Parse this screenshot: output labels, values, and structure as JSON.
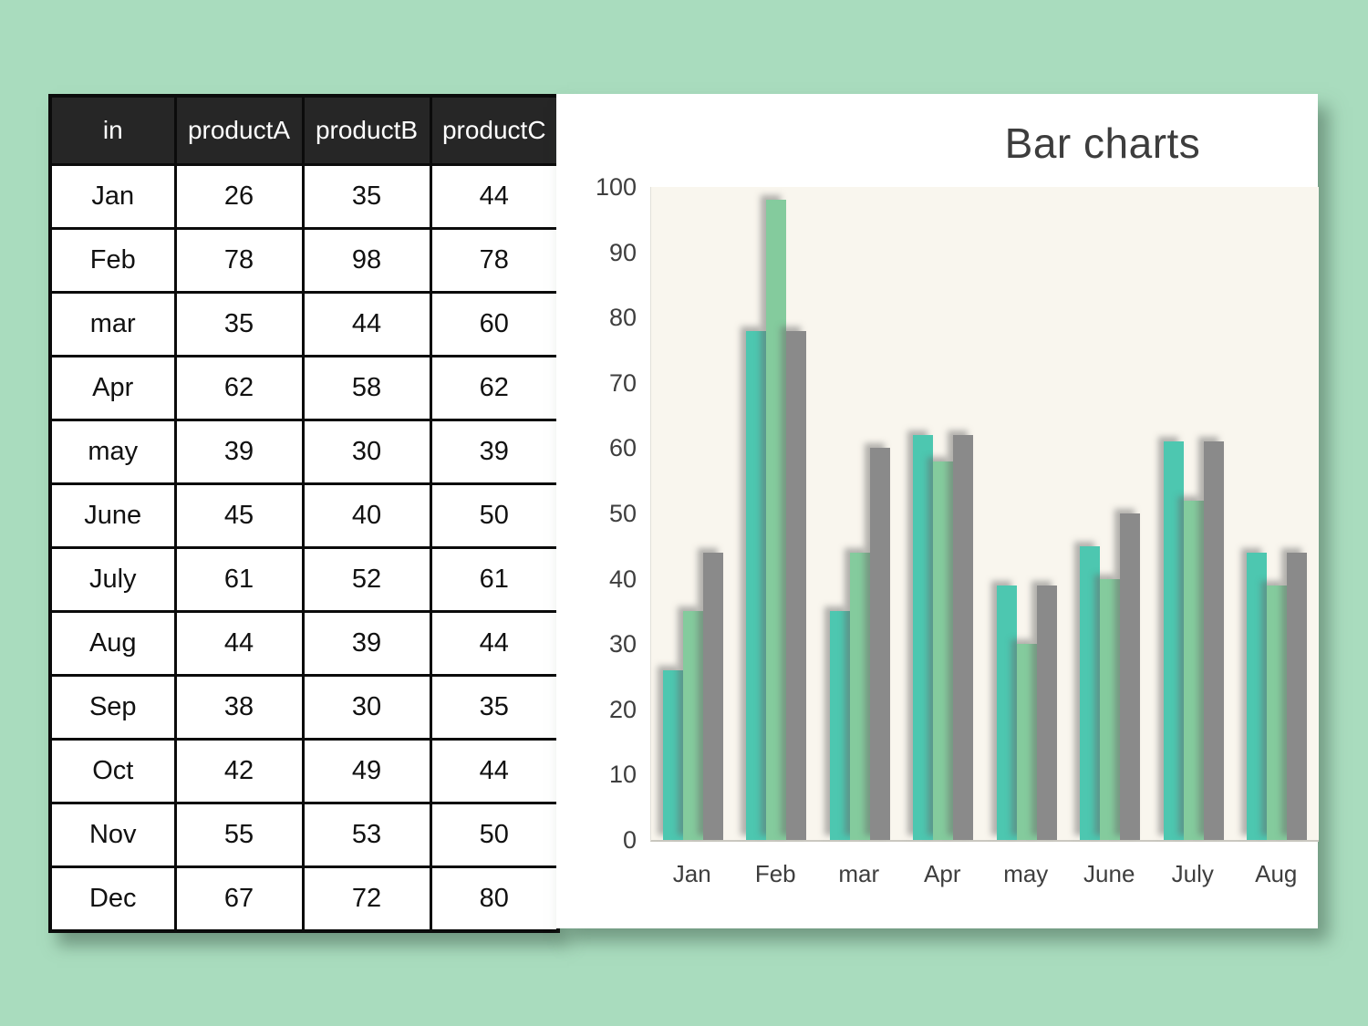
{
  "page": {
    "bg_color": "#a9dcbe"
  },
  "table": {
    "header_bg": "#262626",
    "header_text_color": "#ffffff",
    "headers": [
      "in",
      "productA",
      "productB",
      "productC"
    ],
    "rows": [
      {
        "month": "Jan",
        "productA": 26,
        "productB": 35,
        "productC": 44
      },
      {
        "month": "Feb",
        "productA": 78,
        "productB": 98,
        "productC": 78
      },
      {
        "month": "mar",
        "productA": 35,
        "productB": 44,
        "productC": 60
      },
      {
        "month": "Apr",
        "productA": 62,
        "productB": 58,
        "productC": 62
      },
      {
        "month": "may",
        "productA": 39,
        "productB": 30,
        "productC": 39
      },
      {
        "month": "June",
        "productA": 45,
        "productB": 40,
        "productC": 50
      },
      {
        "month": "July",
        "productA": 61,
        "productB": 52,
        "productC": 61
      },
      {
        "month": "Aug",
        "productA": 44,
        "productB": 39,
        "productC": 44
      },
      {
        "month": "Sep",
        "productA": 38,
        "productB": 30,
        "productC": 35
      },
      {
        "month": "Oct",
        "productA": 42,
        "productB": 49,
        "productC": 44
      },
      {
        "month": "Nov",
        "productA": 55,
        "productB": 53,
        "productC": 50
      },
      {
        "month": "Dec",
        "productA": 67,
        "productB": 72,
        "productC": 80
      }
    ]
  },
  "chart_data": {
    "type": "bar",
    "title": "Bar charts",
    "categories": [
      "Jan",
      "Feb",
      "mar",
      "Apr",
      "may",
      "June",
      "July",
      "Aug"
    ],
    "series": [
      {
        "name": "productA",
        "color": "#4dc7b0",
        "values": [
          26,
          78,
          35,
          62,
          39,
          45,
          61,
          44
        ]
      },
      {
        "name": "productB",
        "color": "#84cb9d",
        "values": [
          35,
          98,
          44,
          58,
          30,
          40,
          52,
          39
        ]
      },
      {
        "name": "productC",
        "color": "#8a8a8a",
        "values": [
          44,
          78,
          60,
          62,
          39,
          50,
          61,
          44
        ]
      }
    ],
    "ylim": [
      0,
      100
    ],
    "ytick_step": 10,
    "grid": false,
    "legend_position": "none",
    "panel_bg": "#ffffff",
    "plot_bg": "#f9f6ee",
    "title_color": "#3d3d3d",
    "axis_text_color": "#3e3e3e"
  }
}
